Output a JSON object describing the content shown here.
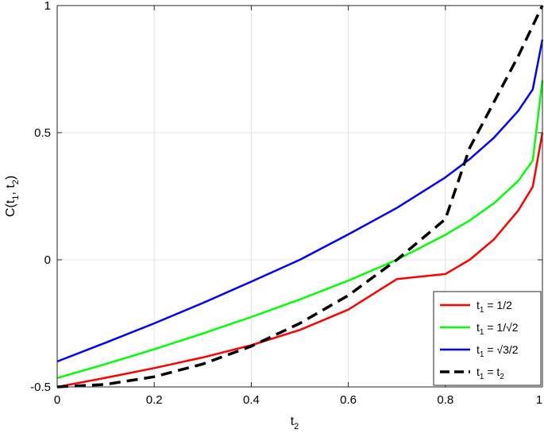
{
  "chart_data": {
    "type": "line",
    "title": "",
    "xlabel": "t",
    "xlabel_sub": "2",
    "ylabel": "C(t",
    "ylabel_sub1": "1",
    "ylabel_mid": ", t",
    "ylabel_sub2": "2",
    "ylabel_end": ")",
    "xlim": [
      0,
      1
    ],
    "ylim": [
      -0.5,
      1
    ],
    "xticks": [
      0,
      0.2,
      0.4,
      0.6,
      0.8,
      1
    ],
    "xtick_labels": [
      "0",
      "0.2",
      "0.4",
      "0.6",
      "0.8",
      "1"
    ],
    "yticks": [
      -0.5,
      0,
      0.5,
      1
    ],
    "ytick_labels": [
      "-0.5",
      "0",
      "0.5",
      "1"
    ],
    "grid": true,
    "legend_position": "bottom-right",
    "series": [
      {
        "name": "t₁ = 1/2",
        "legend_prefix": "t",
        "legend_sub": "1",
        "legend_suffix": " = 1/2",
        "color": "#ff0000",
        "dash": "solid",
        "x": [
          0,
          0.1,
          0.2,
          0.3,
          0.4,
          0.5,
          0.6,
          0.7,
          0.8,
          0.85,
          0.9,
          0.95,
          0.98,
          1.0
        ],
        "y": [
          -0.5,
          -0.464,
          -0.426,
          -0.384,
          -0.336,
          -0.276,
          -0.196,
          -0.076,
          -0.056,
          0.0,
          0.08,
          0.193,
          0.287,
          0.5
        ]
      },
      {
        "name": "t₁ = 1/√2",
        "legend_prefix": "t",
        "legend_sub": "1",
        "legend_suffix": " = 1/√2",
        "color": "#00ff00",
        "dash": "solid",
        "x": [
          0,
          0.1,
          0.2,
          0.3,
          0.4,
          0.5,
          0.6,
          0.7,
          0.8,
          0.85,
          0.9,
          0.95,
          0.98,
          1.0
        ],
        "y": [
          -0.465,
          -0.41,
          -0.352,
          -0.29,
          -0.225,
          -0.156,
          -0.082,
          0.0,
          0.098,
          0.155,
          0.222,
          0.31,
          0.39,
          0.707
        ]
      },
      {
        "name": "t₁ = √3/2",
        "legend_prefix": "t",
        "legend_sub": "1",
        "legend_suffix": " = √3/2",
        "color": "#0000ff",
        "dash": "solid",
        "x": [
          0,
          0.1,
          0.2,
          0.3,
          0.4,
          0.5,
          0.6,
          0.7,
          0.8,
          0.85,
          0.9,
          0.95,
          0.98,
          1.0
        ],
        "y": [
          -0.4,
          -0.326,
          -0.25,
          -0.17,
          -0.086,
          0.0,
          0.1,
          0.204,
          0.324,
          0.396,
          0.48,
          0.585,
          0.67,
          0.866
        ]
      },
      {
        "name": "t₁ = t₂",
        "legend_prefix": "t",
        "legend_sub": "1",
        "legend_suffix": " = t",
        "legend_sub2": "2",
        "color": "#000000",
        "dash": "dashed",
        "x": [
          0,
          0.1,
          0.2,
          0.3,
          0.4,
          0.5,
          0.6,
          0.7,
          0.75,
          0.8,
          0.85,
          0.9,
          0.95,
          1.0
        ],
        "y": [
          -0.5,
          -0.49,
          -0.46,
          -0.41,
          -0.34,
          -0.25,
          -0.14,
          0.0,
          0.08,
          0.16,
          0.44,
          0.62,
          0.8,
          1.0
        ]
      }
    ]
  }
}
